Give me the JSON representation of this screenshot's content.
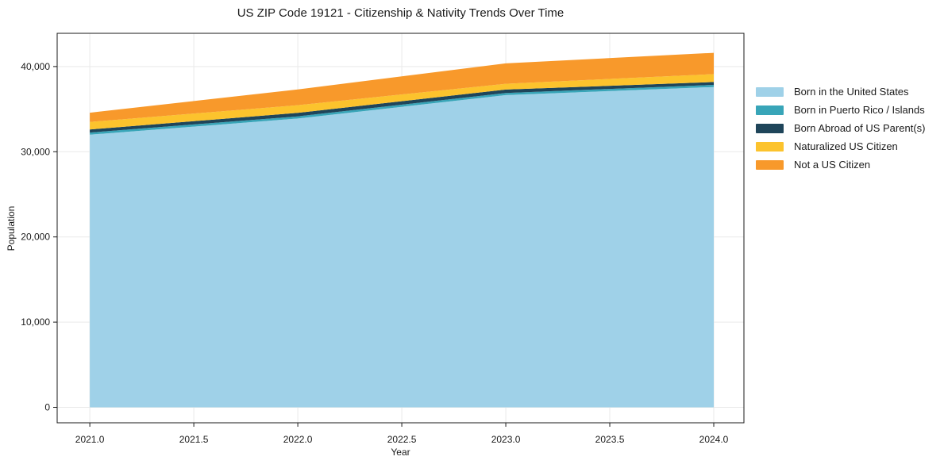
{
  "chart": {
    "title": "US ZIP Code 19121 - Citizenship & Nativity Trends Over Time",
    "xlabel": "Year",
    "ylabel": "Population"
  },
  "chart_data": {
    "type": "area",
    "stacked": true,
    "title": "US ZIP Code 19121 - Citizenship & Nativity Trends Over Time",
    "xlabel": "Year",
    "ylabel": "Population",
    "x": [
      2021,
      2022,
      2023,
      2024
    ],
    "series": [
      {
        "name": "Born in the United States",
        "color": "#9fd1e8",
        "values": [
          32000,
          33900,
          36650,
          37600
        ]
      },
      {
        "name": "Born in Puerto Rico / Islands",
        "color": "#38a5b8",
        "values": [
          250,
          250,
          250,
          250
        ]
      },
      {
        "name": "Born Abroad of US Parent(s)",
        "color": "#1f455a",
        "values": [
          370,
          410,
          400,
          330
        ]
      },
      {
        "name": "Naturalized US Citizen",
        "color": "#fcc32d",
        "values": [
          880,
          900,
          680,
          930
        ]
      },
      {
        "name": "Not a US Citizen",
        "color": "#f8992b",
        "values": [
          1080,
          1860,
          2390,
          2500
        ]
      }
    ],
    "stacked_totals": [
      34580,
      37320,
      40370,
      41610
    ],
    "x_ticks": [
      "2021.0",
      "2021.5",
      "2022.0",
      "2022.5",
      "2023.0",
      "2023.5",
      "2024.0"
    ],
    "x_tick_values": [
      2021,
      2021.5,
      2022,
      2022.5,
      2023,
      2023.5,
      2024
    ],
    "y_ticks": [
      "0",
      "10,000",
      "20,000",
      "30,000",
      "40,000"
    ],
    "y_tick_values": [
      0,
      10000,
      20000,
      30000,
      40000
    ],
    "xlim": [
      2020.843,
      2024.145
    ],
    "ylim": [
      -1815,
      43900
    ],
    "grid": true,
    "grid_color": "#e9e9e9",
    "spine_color": "#1a1a1a",
    "legend_position": "outside-right",
    "legend_frame": false
  }
}
